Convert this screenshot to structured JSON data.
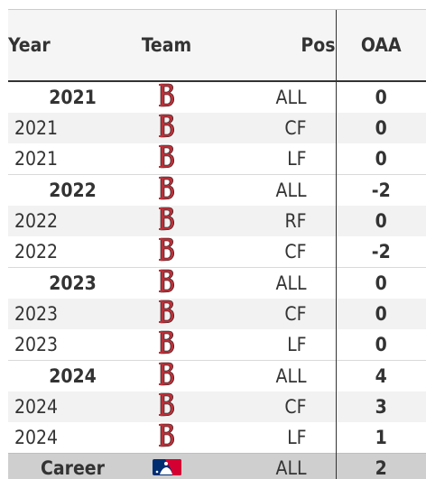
{
  "table": {
    "headers": {
      "year": "Year",
      "team": "Team",
      "pos": "Pos",
      "oaa": "OAA"
    },
    "rows": [
      {
        "year": "2021",
        "team_icon": "red-sox-logo-icon",
        "pos": "ALL",
        "oaa": "0",
        "kind": "season-total"
      },
      {
        "year": "2021",
        "team_icon": "red-sox-logo-icon",
        "pos": "CF",
        "oaa": "0",
        "kind": "split"
      },
      {
        "year": "2021",
        "team_icon": "red-sox-logo-icon",
        "pos": "LF",
        "oaa": "0",
        "kind": "split"
      },
      {
        "year": "2022",
        "team_icon": "red-sox-logo-icon",
        "pos": "ALL",
        "oaa": "-2",
        "kind": "season-total"
      },
      {
        "year": "2022",
        "team_icon": "red-sox-logo-icon",
        "pos": "RF",
        "oaa": "0",
        "kind": "split"
      },
      {
        "year": "2022",
        "team_icon": "red-sox-logo-icon",
        "pos": "CF",
        "oaa": "-2",
        "kind": "split"
      },
      {
        "year": "2023",
        "team_icon": "red-sox-logo-icon",
        "pos": "ALL",
        "oaa": "0",
        "kind": "season-total"
      },
      {
        "year": "2023",
        "team_icon": "red-sox-logo-icon",
        "pos": "CF",
        "oaa": "0",
        "kind": "split"
      },
      {
        "year": "2023",
        "team_icon": "red-sox-logo-icon",
        "pos": "LF",
        "oaa": "0",
        "kind": "split"
      },
      {
        "year": "2024",
        "team_icon": "red-sox-logo-icon",
        "pos": "ALL",
        "oaa": "4",
        "kind": "season-total"
      },
      {
        "year": "2024",
        "team_icon": "red-sox-logo-icon",
        "pos": "CF",
        "oaa": "3",
        "kind": "split"
      },
      {
        "year": "2024",
        "team_icon": "red-sox-logo-icon",
        "pos": "LF",
        "oaa": "1",
        "kind": "split"
      }
    ],
    "career": {
      "year": "Career",
      "team_icon": "mlb-logo-icon",
      "pos": "ALL",
      "oaa": "2"
    }
  },
  "colors": {
    "red_sox_red": "#bd3039",
    "mlb_blue": "#002d72",
    "mlb_red": "#d50032"
  }
}
